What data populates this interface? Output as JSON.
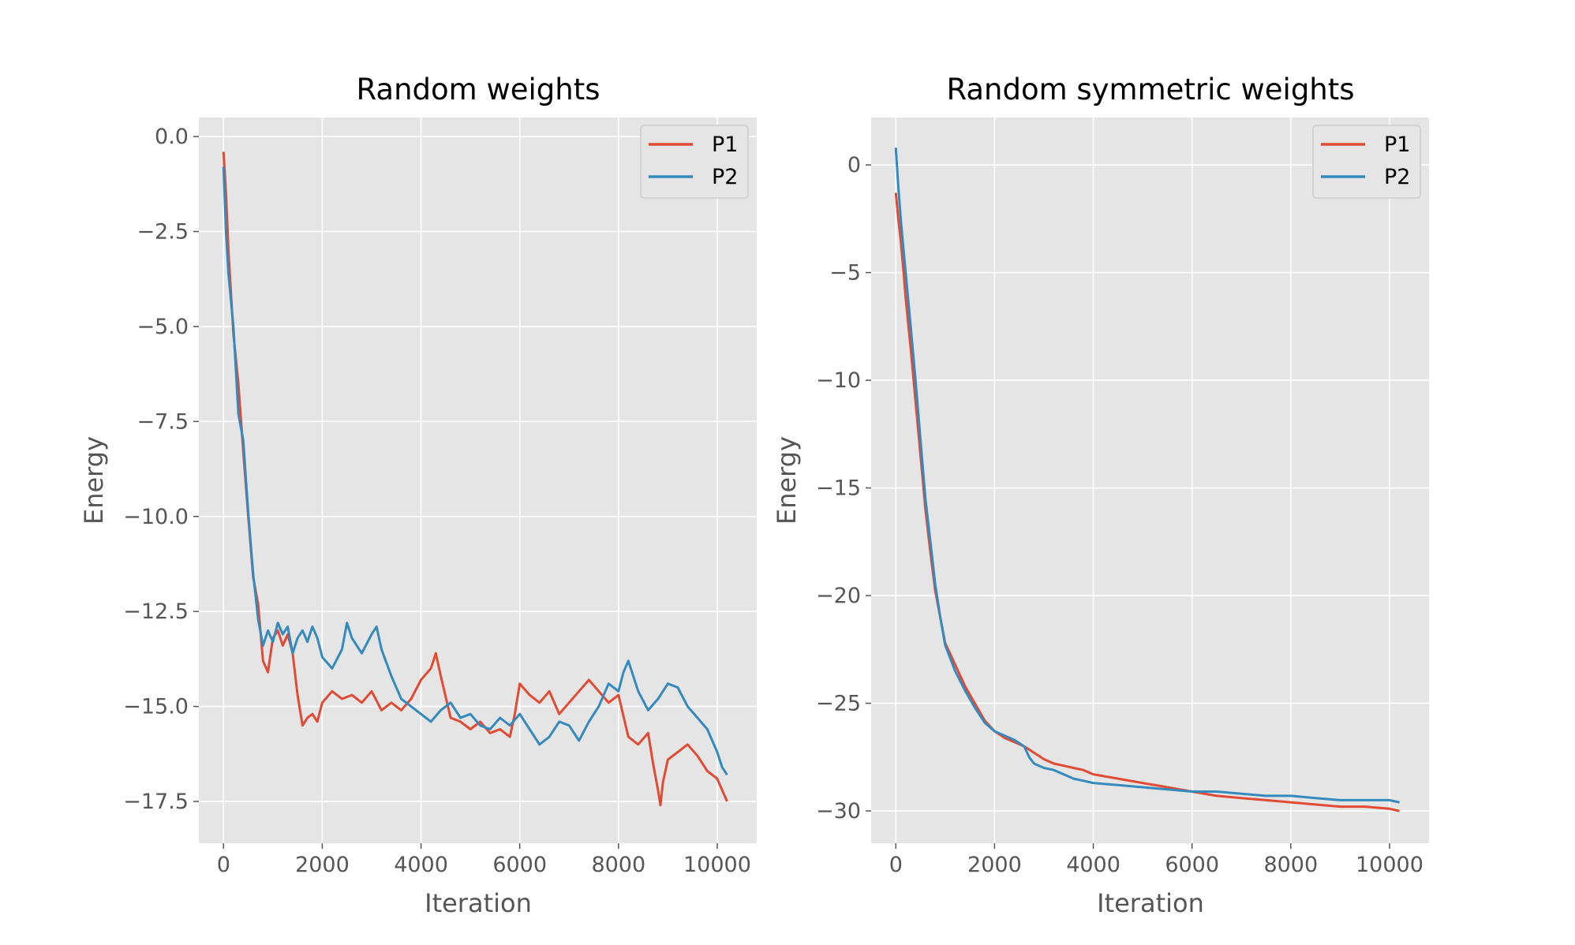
{
  "chart_data": [
    {
      "type": "line",
      "title": "Random weights",
      "xlabel": "Iteration",
      "ylabel": "Energy",
      "xlim": [
        -500,
        10800
      ],
      "ylim": [
        -18.6,
        0.5
      ],
      "xticks": [
        0,
        2000,
        4000,
        6000,
        8000,
        10000
      ],
      "yticks": [
        0.0,
        -2.5,
        -5.0,
        -7.5,
        -10.0,
        -12.5,
        -15.0,
        -17.5
      ],
      "xtick_labels": [
        "0",
        "2000",
        "4000",
        "6000",
        "8000",
        "10000"
      ],
      "ytick_labels": [
        "0.0",
        "−2.5",
        "−5.0",
        "−7.5",
        "−10.0",
        "−12.5",
        "−15.0",
        "−17.5"
      ],
      "grid": true,
      "legend": "top-right",
      "series": [
        {
          "name": "P1",
          "color": "#E24A33",
          "x": [
            0,
            50,
            100,
            200,
            300,
            400,
            500,
            600,
            700,
            800,
            900,
            1000,
            1100,
            1200,
            1300,
            1400,
            1500,
            1600,
            1700,
            1800,
            1900,
            2000,
            2200,
            2400,
            2600,
            2800,
            3000,
            3200,
            3400,
            3600,
            3800,
            4000,
            4200,
            4300,
            4400,
            4600,
            4800,
            5000,
            5200,
            5400,
            5600,
            5800,
            5900,
            6000,
            6200,
            6400,
            6600,
            6800,
            7000,
            7200,
            7400,
            7600,
            7800,
            8000,
            8200,
            8400,
            8600,
            8700,
            8800,
            8850,
            8900,
            9000,
            9200,
            9400,
            9600,
            9800,
            10000,
            10100,
            10200
          ],
          "y": [
            -0.4,
            -1.5,
            -3.0,
            -5.2,
            -6.5,
            -8.3,
            -10.0,
            -11.6,
            -12.3,
            -13.8,
            -14.1,
            -13.2,
            -13.0,
            -13.4,
            -13.1,
            -13.6,
            -14.7,
            -15.5,
            -15.3,
            -15.2,
            -15.4,
            -14.9,
            -14.6,
            -14.8,
            -14.7,
            -14.9,
            -14.6,
            -15.1,
            -14.9,
            -15.1,
            -14.8,
            -14.3,
            -14.0,
            -13.6,
            -14.2,
            -15.3,
            -15.4,
            -15.6,
            -15.4,
            -15.7,
            -15.6,
            -15.8,
            -15.2,
            -14.4,
            -14.7,
            -14.9,
            -14.6,
            -15.2,
            -14.9,
            -14.6,
            -14.3,
            -14.6,
            -14.9,
            -14.7,
            -15.8,
            -16.0,
            -15.7,
            -16.5,
            -17.2,
            -17.6,
            -17.0,
            -16.4,
            -16.2,
            -16.0,
            -16.3,
            -16.7,
            -16.9,
            -17.2,
            -17.5
          ]
        },
        {
          "name": "P2",
          "color": "#348ABD",
          "x": [
            0,
            50,
            100,
            200,
            300,
            400,
            500,
            600,
            700,
            800,
            900,
            1000,
            1100,
            1200,
            1300,
            1400,
            1500,
            1600,
            1700,
            1800,
            1900,
            2000,
            2200,
            2400,
            2500,
            2600,
            2800,
            3000,
            3100,
            3200,
            3400,
            3600,
            3800,
            4000,
            4200,
            4400,
            4600,
            4800,
            5000,
            5200,
            5400,
            5600,
            5800,
            6000,
            6200,
            6400,
            6600,
            6800,
            7000,
            7200,
            7400,
            7600,
            7800,
            8000,
            8100,
            8200,
            8400,
            8600,
            8800,
            9000,
            9200,
            9400,
            9600,
            9800,
            10000,
            10100,
            10200
          ],
          "y": [
            -0.8,
            -2.5,
            -3.6,
            -5.0,
            -7.3,
            -8.0,
            -9.9,
            -11.5,
            -12.7,
            -13.4,
            -13.0,
            -13.3,
            -12.8,
            -13.1,
            -12.9,
            -13.6,
            -13.2,
            -13.0,
            -13.3,
            -12.9,
            -13.2,
            -13.7,
            -14.0,
            -13.5,
            -12.8,
            -13.2,
            -13.6,
            -13.1,
            -12.9,
            -13.5,
            -14.2,
            -14.8,
            -15.0,
            -15.2,
            -15.4,
            -15.1,
            -14.9,
            -15.3,
            -15.2,
            -15.5,
            -15.6,
            -15.3,
            -15.5,
            -15.2,
            -15.6,
            -16.0,
            -15.8,
            -15.4,
            -15.5,
            -15.9,
            -15.4,
            -15.0,
            -14.4,
            -14.6,
            -14.1,
            -13.8,
            -14.6,
            -15.1,
            -14.8,
            -14.4,
            -14.5,
            -15.0,
            -15.3,
            -15.6,
            -16.2,
            -16.6,
            -16.8
          ]
        }
      ]
    },
    {
      "type": "line",
      "title": "Random symmetric weights",
      "xlabel": "Iteration",
      "ylabel": "Energy",
      "xlim": [
        -500,
        10800
      ],
      "ylim": [
        -31.5,
        2.2
      ],
      "xticks": [
        0,
        2000,
        4000,
        6000,
        8000,
        10000
      ],
      "yticks": [
        0,
        -5,
        -10,
        -15,
        -20,
        -25,
        -30
      ],
      "xtick_labels": [
        "0",
        "2000",
        "4000",
        "6000",
        "8000",
        "10000"
      ],
      "ytick_labels": [
        "0",
        "−5",
        "−10",
        "−15",
        "−20",
        "−25",
        "−30"
      ],
      "grid": true,
      "legend": "top-right",
      "series": [
        {
          "name": "P1",
          "color": "#E24A33",
          "x": [
            0,
            50,
            100,
            150,
            200,
            300,
            400,
            500,
            600,
            700,
            800,
            900,
            1000,
            1200,
            1400,
            1600,
            1800,
            2000,
            2200,
            2400,
            2600,
            2800,
            3000,
            3200,
            3400,
            3600,
            3800,
            4000,
            4500,
            5000,
            5500,
            6000,
            6500,
            7000,
            7500,
            8000,
            8500,
            9000,
            9500,
            10000,
            10200
          ],
          "y": [
            -1.3,
            -2.5,
            -3.5,
            -4.8,
            -6.2,
            -8.5,
            -11.0,
            -13.5,
            -16.0,
            -18.0,
            -19.8,
            -21.0,
            -22.2,
            -23.2,
            -24.2,
            -25.0,
            -25.8,
            -26.3,
            -26.6,
            -26.8,
            -27.0,
            -27.3,
            -27.6,
            -27.8,
            -27.9,
            -28.0,
            -28.1,
            -28.3,
            -28.5,
            -28.7,
            -28.9,
            -29.1,
            -29.3,
            -29.4,
            -29.5,
            -29.6,
            -29.7,
            -29.8,
            -29.8,
            -29.9,
            -30.0
          ]
        },
        {
          "name": "P2",
          "color": "#348ABD",
          "x": [
            0,
            50,
            100,
            150,
            200,
            300,
            400,
            500,
            600,
            700,
            800,
            900,
            1000,
            1200,
            1400,
            1600,
            1800,
            2000,
            2200,
            2400,
            2600,
            2700,
            2800,
            3000,
            3200,
            3400,
            3600,
            3800,
            4000,
            4500,
            5000,
            5500,
            6000,
            6500,
            7000,
            7500,
            8000,
            8500,
            9000,
            9500,
            10000,
            10200
          ],
          "y": [
            0.8,
            -1.0,
            -2.5,
            -3.8,
            -5.0,
            -7.5,
            -10.0,
            -12.8,
            -15.5,
            -17.5,
            -19.5,
            -21.0,
            -22.3,
            -23.5,
            -24.4,
            -25.2,
            -25.9,
            -26.3,
            -26.5,
            -26.7,
            -27.0,
            -27.5,
            -27.8,
            -28.0,
            -28.1,
            -28.3,
            -28.5,
            -28.6,
            -28.7,
            -28.8,
            -28.9,
            -29.0,
            -29.1,
            -29.1,
            -29.2,
            -29.3,
            -29.3,
            -29.4,
            -29.5,
            -29.5,
            -29.5,
            -29.6
          ]
        }
      ]
    }
  ]
}
